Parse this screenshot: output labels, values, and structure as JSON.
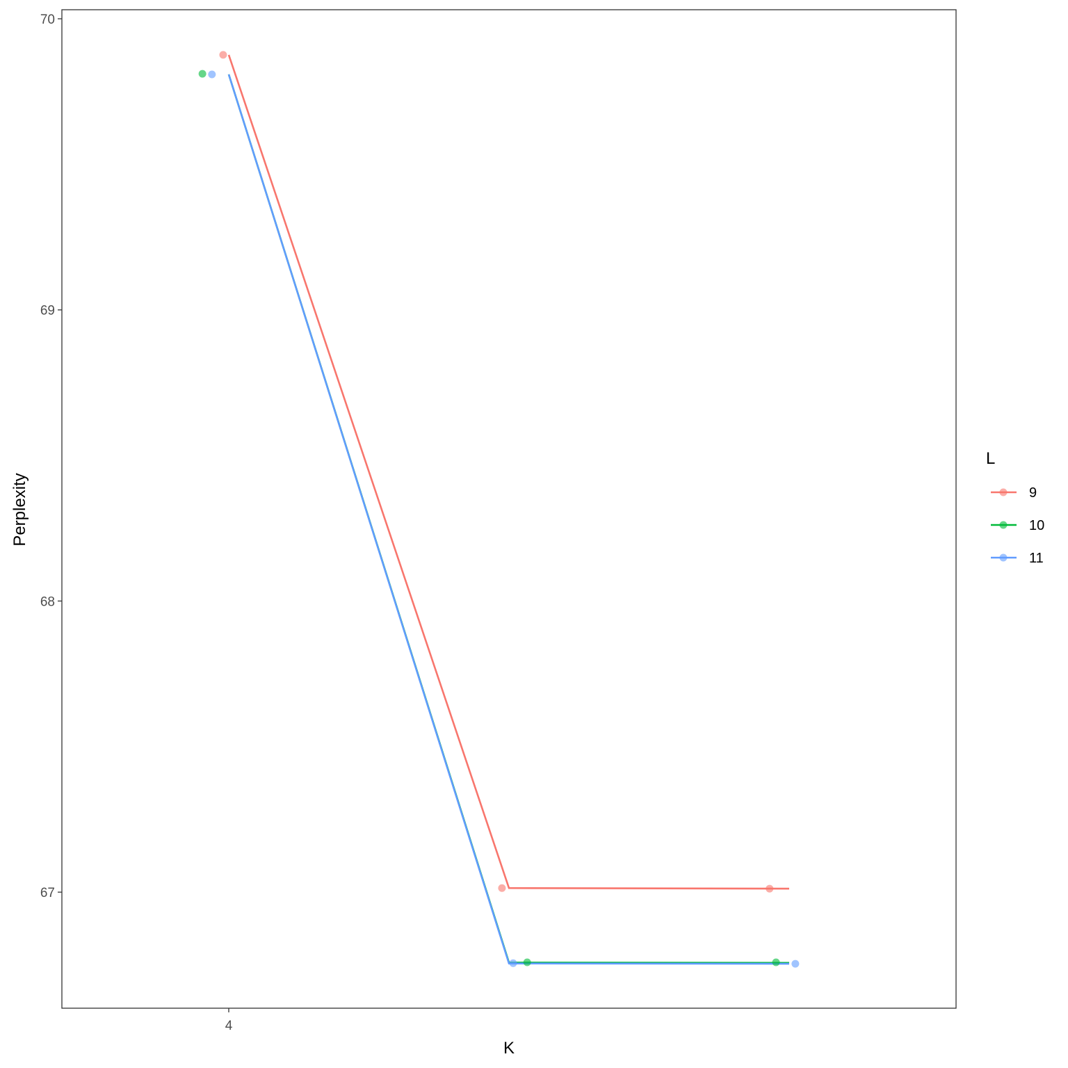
{
  "chart_data": {
    "type": "line",
    "title": "",
    "xlabel": "K",
    "ylabel": "Perplexity",
    "x_ticks": [
      "4"
    ],
    "y_ticks": [
      "67",
      "68",
      "69",
      "70"
    ],
    "xlim": [
      3.4,
      6.6
    ],
    "ylim": [
      66.61,
      70.03
    ],
    "grid": false,
    "legend": {
      "title": "L",
      "placement": "right"
    },
    "series": [
      {
        "name": "9",
        "color": "#F8766D",
        "line": {
          "x": [
            4,
            5,
            6
          ],
          "y": [
            69.876,
            67.014,
            67.012
          ]
        },
        "points": {
          "x": [
            3.98,
            4.975,
            5.93
          ],
          "y": [
            69.876,
            67.014,
            67.012
          ]
        }
      },
      {
        "name": "10",
        "color": "#00BA38",
        "line": {
          "x": [
            4,
            5,
            6
          ],
          "y": [
            69.809,
            66.758,
            66.757
          ]
        },
        "points": {
          "x": [
            3.906,
            5.065,
            5.953
          ],
          "y": [
            69.811,
            66.759,
            66.759
          ]
        }
      },
      {
        "name": "11",
        "color": "#619CFF",
        "line": {
          "x": [
            4,
            5,
            6
          ],
          "y": [
            69.809,
            66.755,
            66.754
          ]
        },
        "points": {
          "x": [
            3.94,
            5.015,
            6.022
          ],
          "y": [
            69.809,
            66.756,
            66.754
          ]
        }
      }
    ]
  }
}
